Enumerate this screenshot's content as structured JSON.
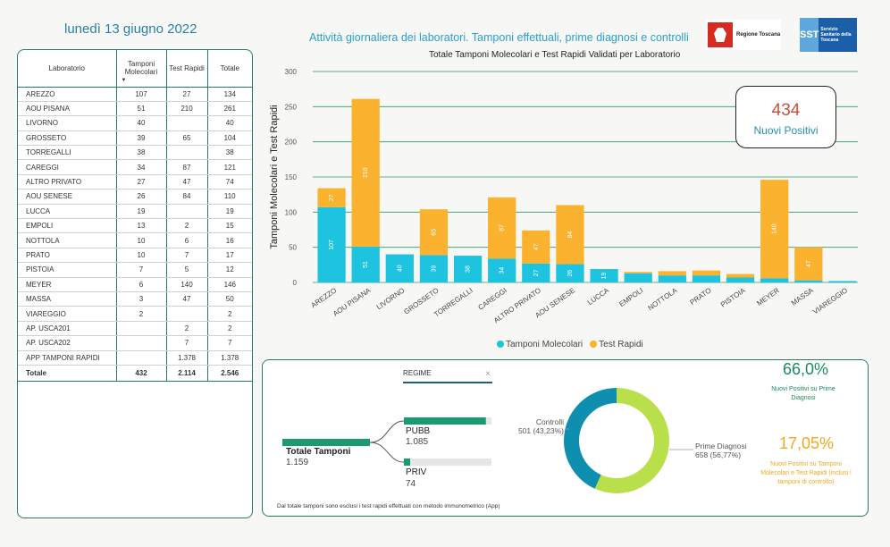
{
  "header": {
    "date": "lunedì 13 giugno 2022",
    "title": "Attività giornaliera dei laboratori. Tamponi effettuali, prime diagnosi e controlli",
    "logo_rt_text": "Regione Toscana",
    "logo_sst_badge": "SST",
    "logo_sst_text": "Servizio Sanitario della Toscana"
  },
  "table": {
    "headers": [
      "Laboratorio",
      "Tamponi Molecolari",
      "Test Rapidi",
      "Totale"
    ],
    "rows": [
      [
        "AREZZO",
        "107",
        "27",
        "134"
      ],
      [
        "AOU PISANA",
        "51",
        "210",
        "261"
      ],
      [
        "LIVORNO",
        "40",
        "",
        "40"
      ],
      [
        "GROSSETO",
        "39",
        "65",
        "104"
      ],
      [
        "TORREGALLI",
        "38",
        "",
        "38"
      ],
      [
        "CAREGGI",
        "34",
        "87",
        "121"
      ],
      [
        "ALTRO PRIVATO",
        "27",
        "47",
        "74"
      ],
      [
        "AOU SENESE",
        "26",
        "84",
        "110"
      ],
      [
        "LUCCA",
        "19",
        "",
        "19"
      ],
      [
        "EMPOLI",
        "13",
        "2",
        "15"
      ],
      [
        "NOTTOLA",
        "10",
        "6",
        "16"
      ],
      [
        "PRATO",
        "10",
        "7",
        "17"
      ],
      [
        "PISTOIA",
        "7",
        "5",
        "12"
      ],
      [
        "MEYER",
        "6",
        "140",
        "146"
      ],
      [
        "MASSA",
        "3",
        "47",
        "50"
      ],
      [
        "VIAREGGIO",
        "2",
        "",
        "2"
      ],
      [
        "AP. USCA201",
        "",
        "2",
        "2"
      ],
      [
        "AP. USCA202",
        "",
        "7",
        "7"
      ],
      [
        "APP TAMPONI RAPIDI",
        "",
        "1.378",
        "1.378"
      ]
    ],
    "total": [
      "Totale",
      "432",
      "2.114",
      "2.546"
    ]
  },
  "chart_data": {
    "type": "bar",
    "stacked": true,
    "title": "Totale Tamponi Molecolari e Test Rapidi Validati per Laboratorio",
    "ylabel": "Tamponi Molecolari e Test Rapidi",
    "xlabel": "",
    "ylim": [
      0,
      300
    ],
    "yticks": [
      0,
      50,
      100,
      150,
      200,
      250,
      300
    ],
    "categories": [
      "AREZZO",
      "AOU PISANA",
      "LIVORNO",
      "GROSSETO",
      "TORREGALLI",
      "CAREGGI",
      "ALTRO PRIVATO",
      "AOU SENESE",
      "LUCCA",
      "EMPOLI",
      "NOTTOLA",
      "PRATO",
      "PISTOIA",
      "MEYER",
      "MASSA",
      "VIAREGGIO"
    ],
    "series": [
      {
        "name": "Tamponi Molecolari",
        "color": "#1ec3e0",
        "values": [
          107,
          51,
          40,
          39,
          38,
          34,
          27,
          26,
          19,
          13,
          10,
          10,
          7,
          6,
          3,
          2
        ]
      },
      {
        "name": "Test Rapidi",
        "color": "#fbb22e",
        "values": [
          27,
          210,
          0,
          65,
          0,
          87,
          47,
          84,
          0,
          2,
          6,
          7,
          5,
          140,
          47,
          0
        ]
      }
    ],
    "labels_molecolari": [
      "107",
      "51",
      "40",
      "39",
      "38",
      "34",
      "27",
      "26",
      "19",
      "",
      "",
      "",
      "",
      "",
      "",
      ""
    ],
    "labels_rapidi": [
      "27",
      "210",
      "",
      "65",
      "",
      "87",
      "47",
      "84",
      "",
      "",
      "",
      "",
      "",
      "140",
      "47",
      ""
    ],
    "legend_position": "bottom",
    "grid": true
  },
  "kpi": {
    "value": "434",
    "label": "Nuovi Positivi"
  },
  "decomposition": {
    "slicer_label": "REGIME",
    "slicer_clear": "×",
    "root_label": "Totale Tamponi",
    "root_value": "1.159",
    "children": [
      {
        "label": "PUBB",
        "value": "1.085",
        "fraction": 0.936
      },
      {
        "label": "PRIV",
        "value": "74",
        "fraction": 0.064
      }
    ],
    "note": "Dal totale tamponi sono esclusi i test rapidi effettuati con metodo immunometrico (App)"
  },
  "donut": {
    "controlli_label": "Controlli",
    "controlli_value": "501 (43,23%)",
    "prime_label": "Prime Diagnosi",
    "prime_value": "658 (56,77%)",
    "controlli_fraction": 0.4323,
    "controlli_color": "#0e8fb0",
    "prime_color": "#b9e04a"
  },
  "kpis_right": {
    "pct1": "66,0%",
    "pct1_label": "Nuovi Positivi su Prime Diagnosi",
    "pct2": "17,05%",
    "pct2_label": "Nuovi Positivi su Tamponi Molecolari e Test Rapidi (inclusi i tamponi di controllo)"
  }
}
